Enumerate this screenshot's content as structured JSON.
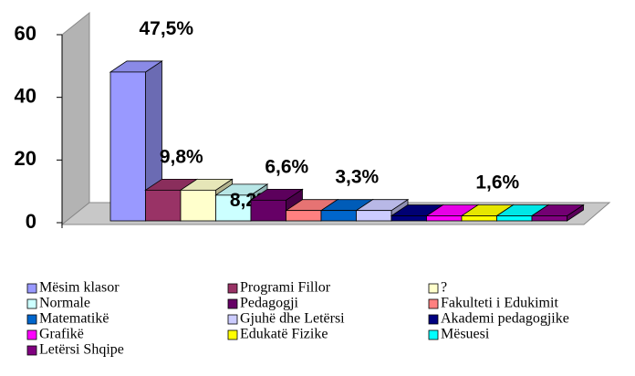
{
  "chart_data": {
    "type": "bar3d",
    "categories": [
      "Mësim klasor",
      "Programi Fillor",
      "?",
      "Normale",
      "Pedagogji",
      "Fakulteti i Edukimit",
      "Matematikë",
      "Gjuhë dhe Letërsi",
      "Akademi pedagogjike",
      "Grafikë",
      "Edukatë Fizike",
      "Mësuesi",
      "Letërsi Shqipe"
    ],
    "values": [
      47.5,
      9.8,
      9.8,
      8.2,
      6.6,
      3.3,
      3.3,
      3.3,
      1.6,
      1.6,
      1.6,
      1.6,
      1.6
    ],
    "value_labels": [
      "47,5%",
      "9,8%",
      null,
      "8,2%",
      "6,6%",
      null,
      "3,3%",
      null,
      null,
      null,
      "1,6%",
      null,
      null
    ],
    "colors": [
      "#9999ff",
      "#993366",
      "#ffffcc",
      "#ccffff",
      "#660066",
      "#ff8080",
      "#0066cc",
      "#ccccff",
      "#000080",
      "#ff00ff",
      "#ffff00",
      "#00ffff",
      "#800080"
    ],
    "ylim": [
      0,
      60
    ],
    "yticks": [
      0,
      20,
      40,
      60
    ],
    "legend": "bottom"
  }
}
